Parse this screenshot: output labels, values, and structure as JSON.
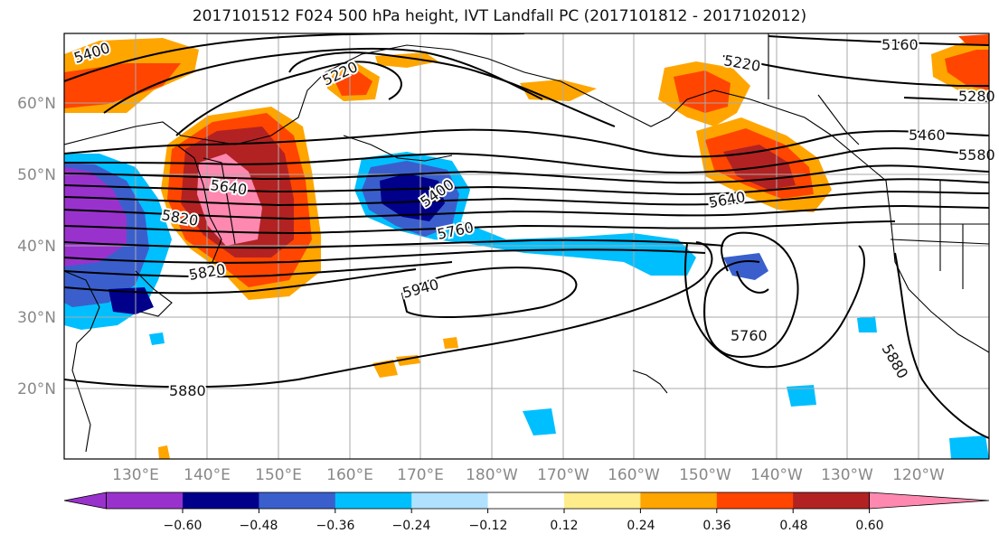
{
  "title": "2017101512 F024 500 hPa height, IVT Landfall PC (2017101812 - 2017102012)",
  "lat_labels": [
    "60°N",
    "50°N",
    "40°N",
    "30°N",
    "20°N"
  ],
  "lon_labels": [
    "130°E",
    "140°E",
    "150°E",
    "160°E",
    "170°E",
    "180°W",
    "170°W",
    "160°W",
    "150°W",
    "140°W",
    "130°W",
    "120°W"
  ],
  "contour_labels": [
    "5400",
    "5220",
    "5220",
    "5160",
    "5280",
    "5460",
    "5580",
    "5640",
    "5400",
    "5760",
    "5640",
    "5820",
    "5820",
    "5940",
    "5760",
    "5880",
    "5880",
    "5400"
  ],
  "colorbar": {
    "ticks": [
      "−0.60",
      "−0.48",
      "−0.36",
      "−0.24",
      "−0.12",
      "0.12",
      "0.24",
      "0.36",
      "0.48",
      "0.60"
    ],
    "colors": [
      "#9932CC",
      "#00008B",
      "#3A5FCD",
      "#00BFFF",
      "#B0E2FF",
      "#FFFFFF",
      "#FFEC8B",
      "#FFA500",
      "#FF4500",
      "#B22222",
      "#FF88B0"
    ]
  }
}
